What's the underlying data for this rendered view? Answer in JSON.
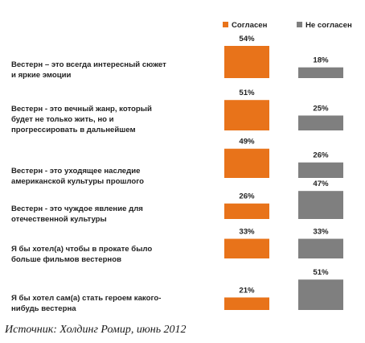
{
  "chart_data": {
    "type": "bar",
    "orientation": "horizontal",
    "legend_position": "top-right",
    "unit": "%",
    "categories": [
      [
        "Вестерн – это всегда интересный сюжет",
        "и яркие эмоции"
      ],
      [
        "Вестерн - это вечный жанр, который",
        "будет не только жить, но и",
        "прогрессировать в дальнейшем"
      ],
      [
        "Вестерн - это уходящее наследие",
        "американской культуры прошлого"
      ],
      [
        "Вестерн - это чуждое явление для",
        "отечественной культуры"
      ],
      [
        "Я бы хотел(а) чтобы в прокате было",
        "больше фильмов вестернов"
      ],
      [
        "Я бы хотел сам(а) стать героем какого-",
        "нибудь вестерна"
      ]
    ],
    "series": [
      {
        "name": "Согласен",
        "color": "#e8731a",
        "values": [
          54,
          51,
          49,
          26,
          33,
          21
        ]
      },
      {
        "name": "Не согласен",
        "color": "#7f7f7f",
        "values": [
          18,
          25,
          26,
          47,
          33,
          51
        ]
      }
    ]
  },
  "source": "Источник: Холдинг Ромир, июнь 2012"
}
